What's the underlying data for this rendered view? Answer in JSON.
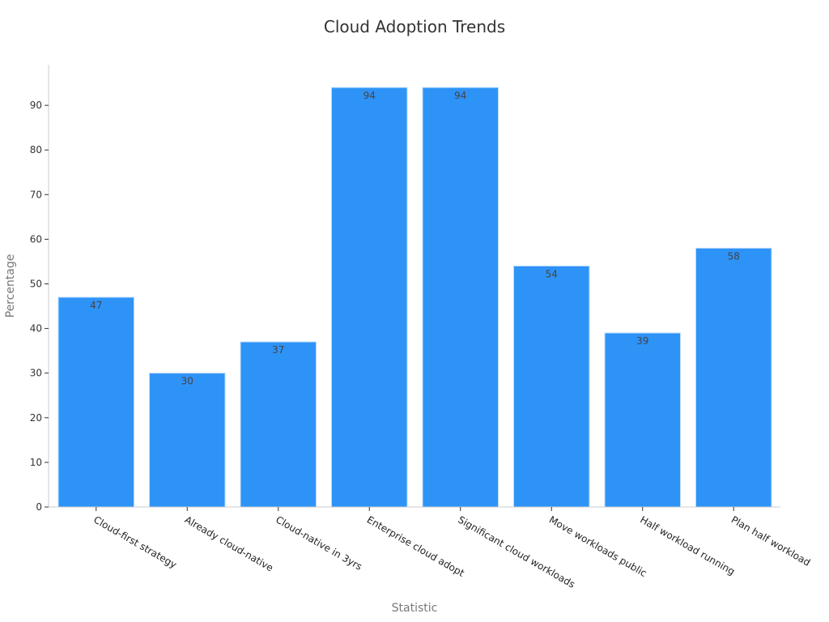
{
  "chart_data": {
    "type": "bar",
    "title": "Cloud Adoption Trends",
    "xlabel": "Statistic",
    "ylabel": "Percentage",
    "categories": [
      "Cloud-first strategy",
      "Already cloud-native",
      "Cloud-native in 3yrs",
      "Enterprise cloud adopt",
      "Significant cloud workloads",
      "Move workloads public",
      "Half workload running",
      "Plan half workload"
    ],
    "values": [
      47,
      30,
      37,
      94,
      94,
      54,
      39,
      58
    ],
    "ylim": [
      0,
      99
    ],
    "yticks": [
      0,
      10,
      20,
      30,
      40,
      50,
      60,
      70,
      80,
      90
    ],
    "bar_color": "#2e93f7",
    "grid": false,
    "legend": "none"
  }
}
